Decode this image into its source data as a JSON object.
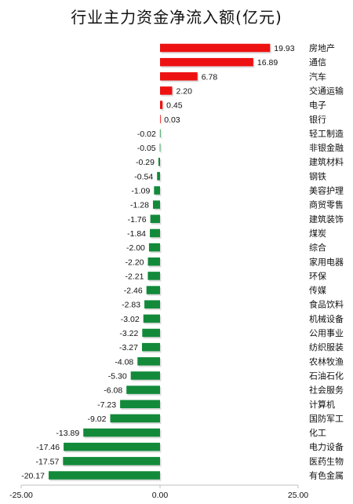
{
  "chart_data": {
    "type": "bar",
    "orientation": "horizontal",
    "title": "行业主力资金净流入额(亿元)",
    "categories": [
      "房地产",
      "通信",
      "汽车",
      "交通运输",
      "电子",
      "银行",
      "轻工制造",
      "非银金融",
      "建筑材料",
      "钢铁",
      "美容护理",
      "商贸零售",
      "建筑装饰",
      "煤炭",
      "综合",
      "家用电器",
      "环保",
      "传媒",
      "食品饮料",
      "机械设备",
      "公用事业",
      "纺织服装",
      "农林牧渔",
      "石油石化",
      "社会服务",
      "计算机",
      "国防军工",
      "化工",
      "电力设备",
      "医药生物",
      "有色金属"
    ],
    "values": [
      19.93,
      16.89,
      6.78,
      2.2,
      0.45,
      0.03,
      -0.02,
      -0.05,
      -0.29,
      -0.54,
      -1.09,
      -1.28,
      -1.76,
      -1.84,
      -2.0,
      -2.2,
      -2.21,
      -2.46,
      -2.83,
      -3.02,
      -3.22,
      -3.27,
      -4.08,
      -5.3,
      -6.08,
      -7.23,
      -9.02,
      -13.89,
      -17.46,
      -17.57,
      -20.17
    ],
    "value_labels": [
      "19.93",
      "16.89",
      "6.78",
      "2.20",
      "0.45",
      "0.03",
      "-0.02",
      "-0.05",
      "-0.29",
      "-0.54",
      "-1.09",
      "-1.28",
      "-1.76",
      "-1.84",
      "-2.00",
      "-2.20",
      "-2.21",
      "-2.46",
      "-2.83",
      "-3.02",
      "-3.22",
      "-3.27",
      "-4.08",
      "-5.30",
      "-6.08",
      "-7.23",
      "-9.02",
      "-13.89",
      "-17.46",
      "-17.57",
      "-20.17"
    ],
    "xlim": [
      -25,
      25
    ],
    "xticks": [
      "-25.00",
      "0.00",
      "25.00"
    ],
    "grid": false,
    "legend": "none",
    "colors": {
      "positive": "#ee1111",
      "negative": "#128a3a"
    }
  }
}
